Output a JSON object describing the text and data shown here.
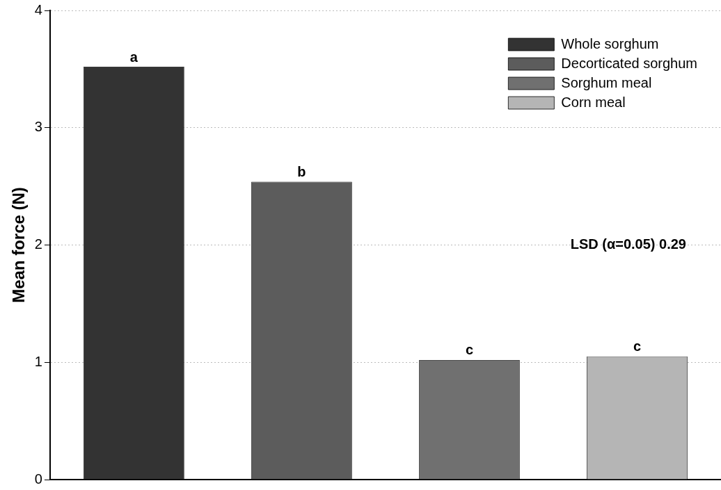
{
  "chart_data": {
    "type": "bar",
    "ylabel": "Mean force (N)",
    "categories": [
      null,
      null,
      null,
      null
    ],
    "series": [
      {
        "name": "Whole sorghum",
        "color": "#333333",
        "values": [
          3.52,
          null,
          null,
          null
        ],
        "value_labels": [
          "a",
          null,
          null,
          null
        ]
      },
      {
        "name": "Decorticated sorghum",
        "color": "#5c5c5c",
        "values": [
          null,
          2.54,
          null,
          null
        ],
        "value_labels": [
          null,
          "b",
          null,
          null
        ]
      },
      {
        "name": "Sorghum meal",
        "color": "#707070",
        "values": [
          null,
          null,
          1.02,
          null
        ],
        "value_labels": [
          null,
          null,
          "c",
          null
        ]
      },
      {
        "name": "Corn meal",
        "color": "#b5b5b5",
        "values": [
          null,
          null,
          null,
          1.05
        ],
        "value_labels": [
          null,
          null,
          null,
          "c"
        ]
      }
    ],
    "ylim": [
      0,
      4
    ],
    "yticks": [
      0,
      1,
      2,
      3,
      4
    ],
    "grid": "y",
    "legend": "top right",
    "tick_labels": "y",
    "annotations": [
      "LSD (α=0.05) 0.29"
    ]
  }
}
